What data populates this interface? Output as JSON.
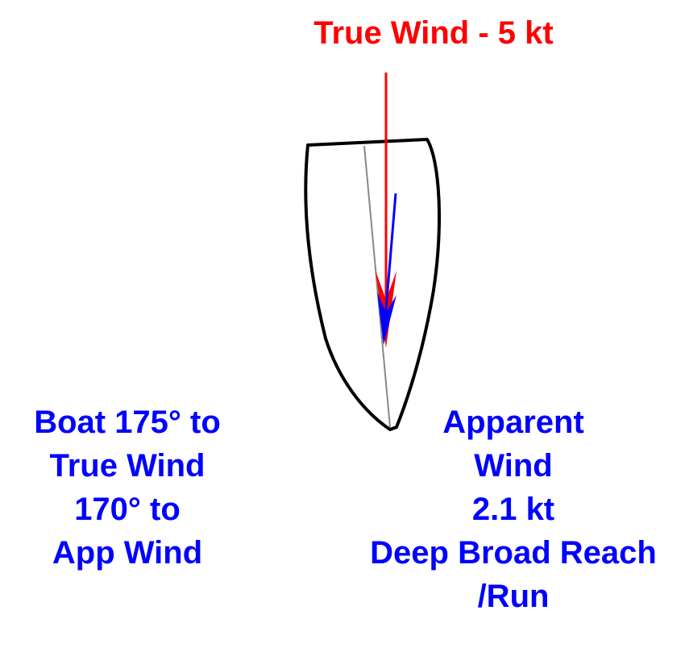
{
  "title": {
    "text": "True Wind - 5 kt",
    "color": "#ff0000"
  },
  "boat_angles": {
    "lines": [
      "Boat 175° to",
      "True Wind",
      "170° to",
      "App Wind"
    ],
    "color": "#0000ff"
  },
  "apparent_wind": {
    "lines": [
      "Apparent",
      "Wind",
      "2.1 kt",
      "Deep Broad Reach",
      "/Run"
    ],
    "color": "#0000ff"
  },
  "colors": {
    "true_wind_arrow": "#ff0000",
    "apparent_wind_arrow": "#0000ff",
    "hull_outline": "#000000",
    "centerline": "#888888"
  },
  "icons": {
    "boat": "boat-hull-icon",
    "true_wind": "true-wind-arrow-icon",
    "apparent_wind": "apparent-wind-arrow-icon"
  }
}
